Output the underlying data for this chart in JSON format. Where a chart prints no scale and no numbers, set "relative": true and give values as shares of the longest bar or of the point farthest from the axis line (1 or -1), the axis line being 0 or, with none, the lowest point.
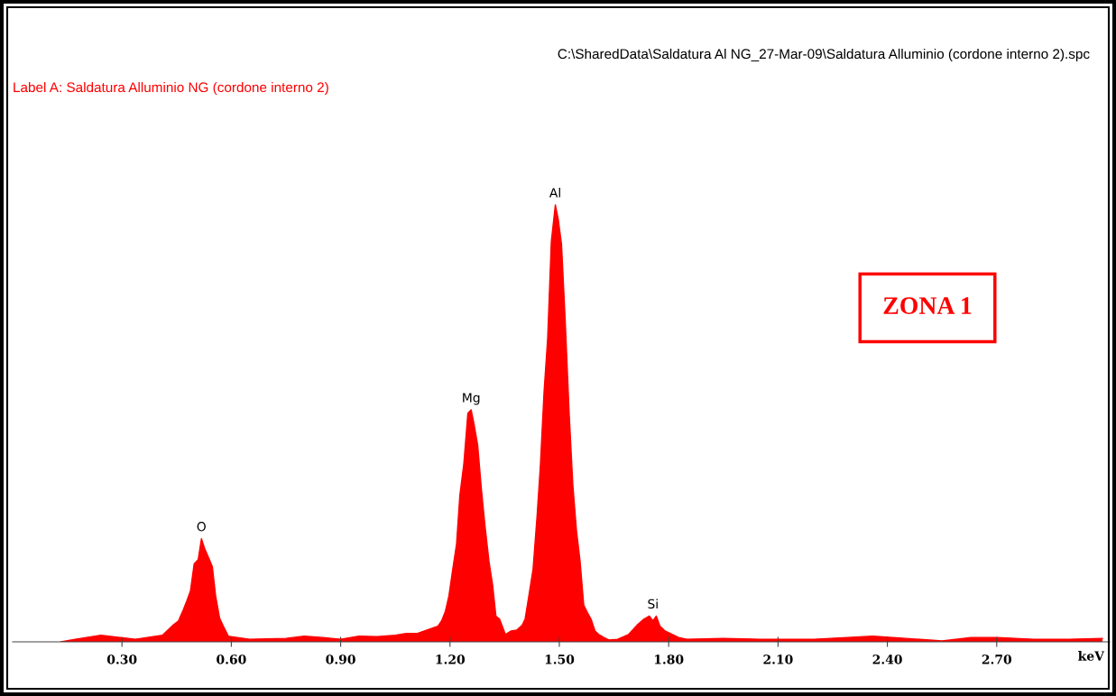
{
  "chart_data": {
    "type": "area",
    "relative": true,
    "title": "Label A: Saldatura Alluminio NG (cordone interno 2)",
    "subtitle": "C:\\SharedData\\Saldatura Al NG_27-Mar-09\\Saldatura Alluminio (cordone interno 2).spc",
    "xlabel": "keV",
    "x": [
      0.133,
      0.172,
      0.242,
      0.337,
      0.411,
      0.44,
      0.455,
      0.468,
      0.478,
      0.488,
      0.498,
      0.509,
      0.518,
      0.527,
      0.538,
      0.548,
      0.557,
      0.568,
      0.578,
      0.592,
      0.65,
      0.75,
      0.8,
      0.85,
      0.9,
      0.95,
      1.0,
      1.05,
      1.08,
      1.109,
      1.167,
      1.177,
      1.187,
      1.197,
      1.207,
      1.218,
      1.227,
      1.238,
      1.249,
      1.258,
      1.266,
      1.276,
      1.286,
      1.296,
      1.307,
      1.317,
      1.326,
      1.336,
      1.352,
      1.368,
      1.383,
      1.398,
      1.406,
      1.417,
      1.428,
      1.439,
      1.448,
      1.458,
      1.468,
      1.478,
      1.489,
      1.497,
      1.506,
      1.516,
      1.527,
      1.537,
      1.547,
      1.557,
      1.567,
      1.577,
      1.587,
      1.598,
      1.608,
      1.622,
      1.637,
      1.66,
      1.69,
      1.713,
      1.732,
      1.747,
      1.757,
      1.766,
      1.776,
      1.79,
      1.827,
      1.85,
      1.95,
      2.05,
      2.2,
      2.36,
      2.45,
      2.55,
      2.63,
      2.7,
      2.8,
      2.9,
      2.99
    ],
    "values": [
      0,
      0.006,
      0.015,
      0.006,
      0.015,
      0.038,
      0.048,
      0.073,
      0.094,
      0.117,
      0.178,
      0.188,
      0.236,
      0.213,
      0.192,
      0.172,
      0.105,
      0.054,
      0.036,
      0.013,
      0.006,
      0.008,
      0.013,
      0.01,
      0.006,
      0.013,
      0.012,
      0.015,
      0.019,
      0.019,
      0.036,
      0.048,
      0.069,
      0.105,
      0.163,
      0.224,
      0.335,
      0.408,
      0.523,
      0.531,
      0.498,
      0.45,
      0.351,
      0.266,
      0.184,
      0.13,
      0.059,
      0.052,
      0.017,
      0.025,
      0.027,
      0.038,
      0.052,
      0.109,
      0.167,
      0.289,
      0.404,
      0.571,
      0.695,
      0.916,
      1,
      0.967,
      0.91,
      0.738,
      0.523,
      0.36,
      0.255,
      0.184,
      0.084,
      0.067,
      0.052,
      0.025,
      0.017,
      0.01,
      0.004,
      0.006,
      0.017,
      0.038,
      0.052,
      0.059,
      0.048,
      0.059,
      0.036,
      0.025,
      0.01,
      0.006,
      0.008,
      0.006,
      0.006,
      0.013,
      0.008,
      0.002,
      0.01,
      0.01,
      0.006,
      0.006,
      0.008
    ],
    "color": "#ff0000",
    "xlim": [
      0.0,
      3.01
    ],
    "xticks": [
      {
        "value": 0.3,
        "label": "0.30"
      },
      {
        "value": 0.6,
        "label": "0.60"
      },
      {
        "value": 0.9,
        "label": "0.90"
      },
      {
        "value": 1.2,
        "label": "1.20"
      },
      {
        "value": 1.5,
        "label": "1.50"
      },
      {
        "value": 1.8,
        "label": "1.80"
      },
      {
        "value": 2.1,
        "label": "2.10"
      },
      {
        "value": 2.4,
        "label": "2.40"
      },
      {
        "value": 2.7,
        "label": "2.70"
      }
    ],
    "annotations": [
      {
        "text": "O",
        "x": 0.518,
        "y": 0.236
      },
      {
        "text": "Mg",
        "x": 1.258,
        "y": 0.531
      },
      {
        "text": "Al",
        "x": 1.489,
        "y": 1
      },
      {
        "text": "Si",
        "x": 1.757,
        "y": 0.059
      },
      "ZONA 1"
    ]
  }
}
